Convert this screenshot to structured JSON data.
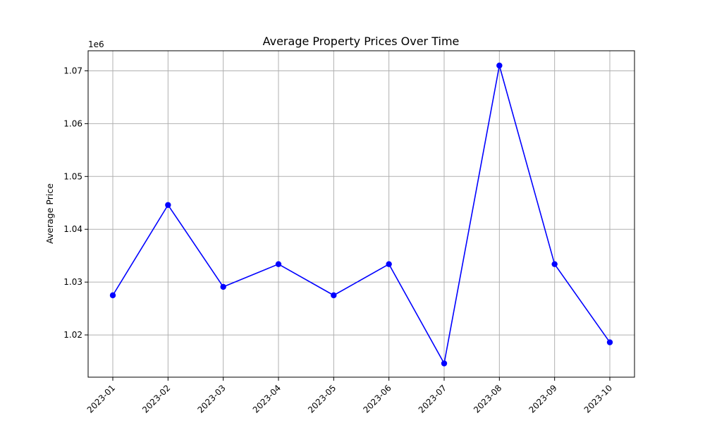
{
  "chart_data": {
    "type": "line",
    "title": "Average Property Prices Over Time",
    "xlabel": "",
    "ylabel": "Average Price",
    "y_offset_label": "1e6",
    "categories": [
      "2023-01",
      "2023-02",
      "2023-03",
      "2023-04",
      "2023-05",
      "2023-06",
      "2023-07",
      "2023-08",
      "2023-09",
      "2023-10"
    ],
    "series": [
      {
        "values": [
          1027500,
          1044600,
          1029100,
          1033400,
          1027500,
          1033400,
          1014600,
          1071000,
          1033400,
          1018600
        ],
        "color": "#0000ff",
        "marker": "circle"
      }
    ],
    "ylim": [
      1012000,
      1073800
    ],
    "yticks": [
      1.02,
      1.03,
      1.04,
      1.05,
      1.06,
      1.07
    ],
    "ytick_labels": [
      "1.02",
      "1.03",
      "1.04",
      "1.05",
      "1.06",
      "1.07"
    ],
    "x_tick_rotation": 45,
    "grid": true,
    "legend": false
  }
}
